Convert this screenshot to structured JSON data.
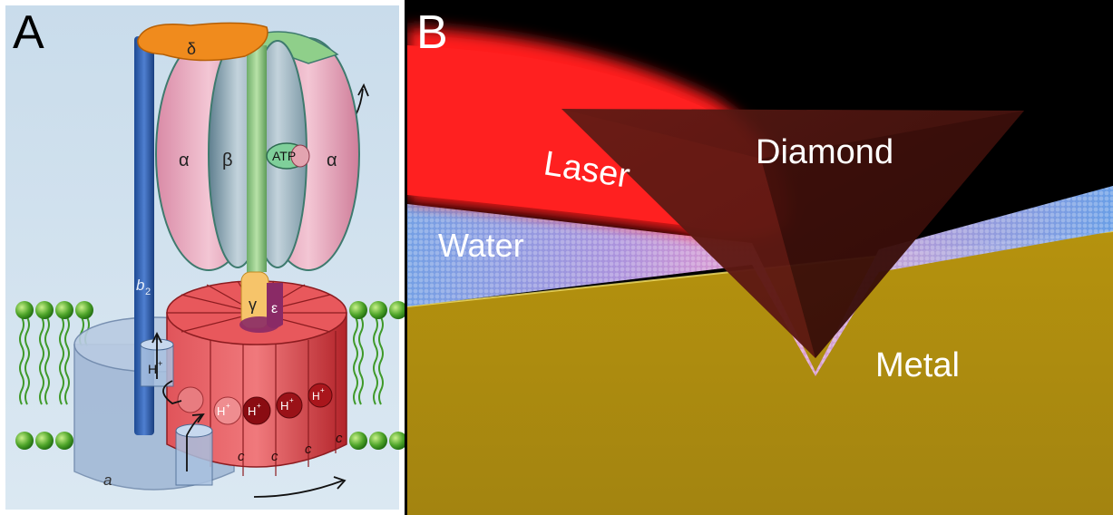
{
  "panel_a": {
    "letter": "A",
    "labels": {
      "delta": "δ",
      "alpha_left": "α",
      "beta": "β",
      "atp": "ATP",
      "alpha_right": "α",
      "b2": "b",
      "b2_sub": "2",
      "gamma": "γ",
      "epsilon": "ε",
      "a": "a",
      "c1": "c",
      "c2": "c",
      "c3": "c",
      "c4": "c",
      "h_top": "H",
      "h_1": "H",
      "h_2": "H",
      "h_3": "H",
      "h_4": "H",
      "plus": "+"
    }
  },
  "panel_b": {
    "letter": "B",
    "labels": {
      "laser": "Laser",
      "diamond": "Diamond",
      "water": "Water",
      "metal": "Metal"
    }
  }
}
